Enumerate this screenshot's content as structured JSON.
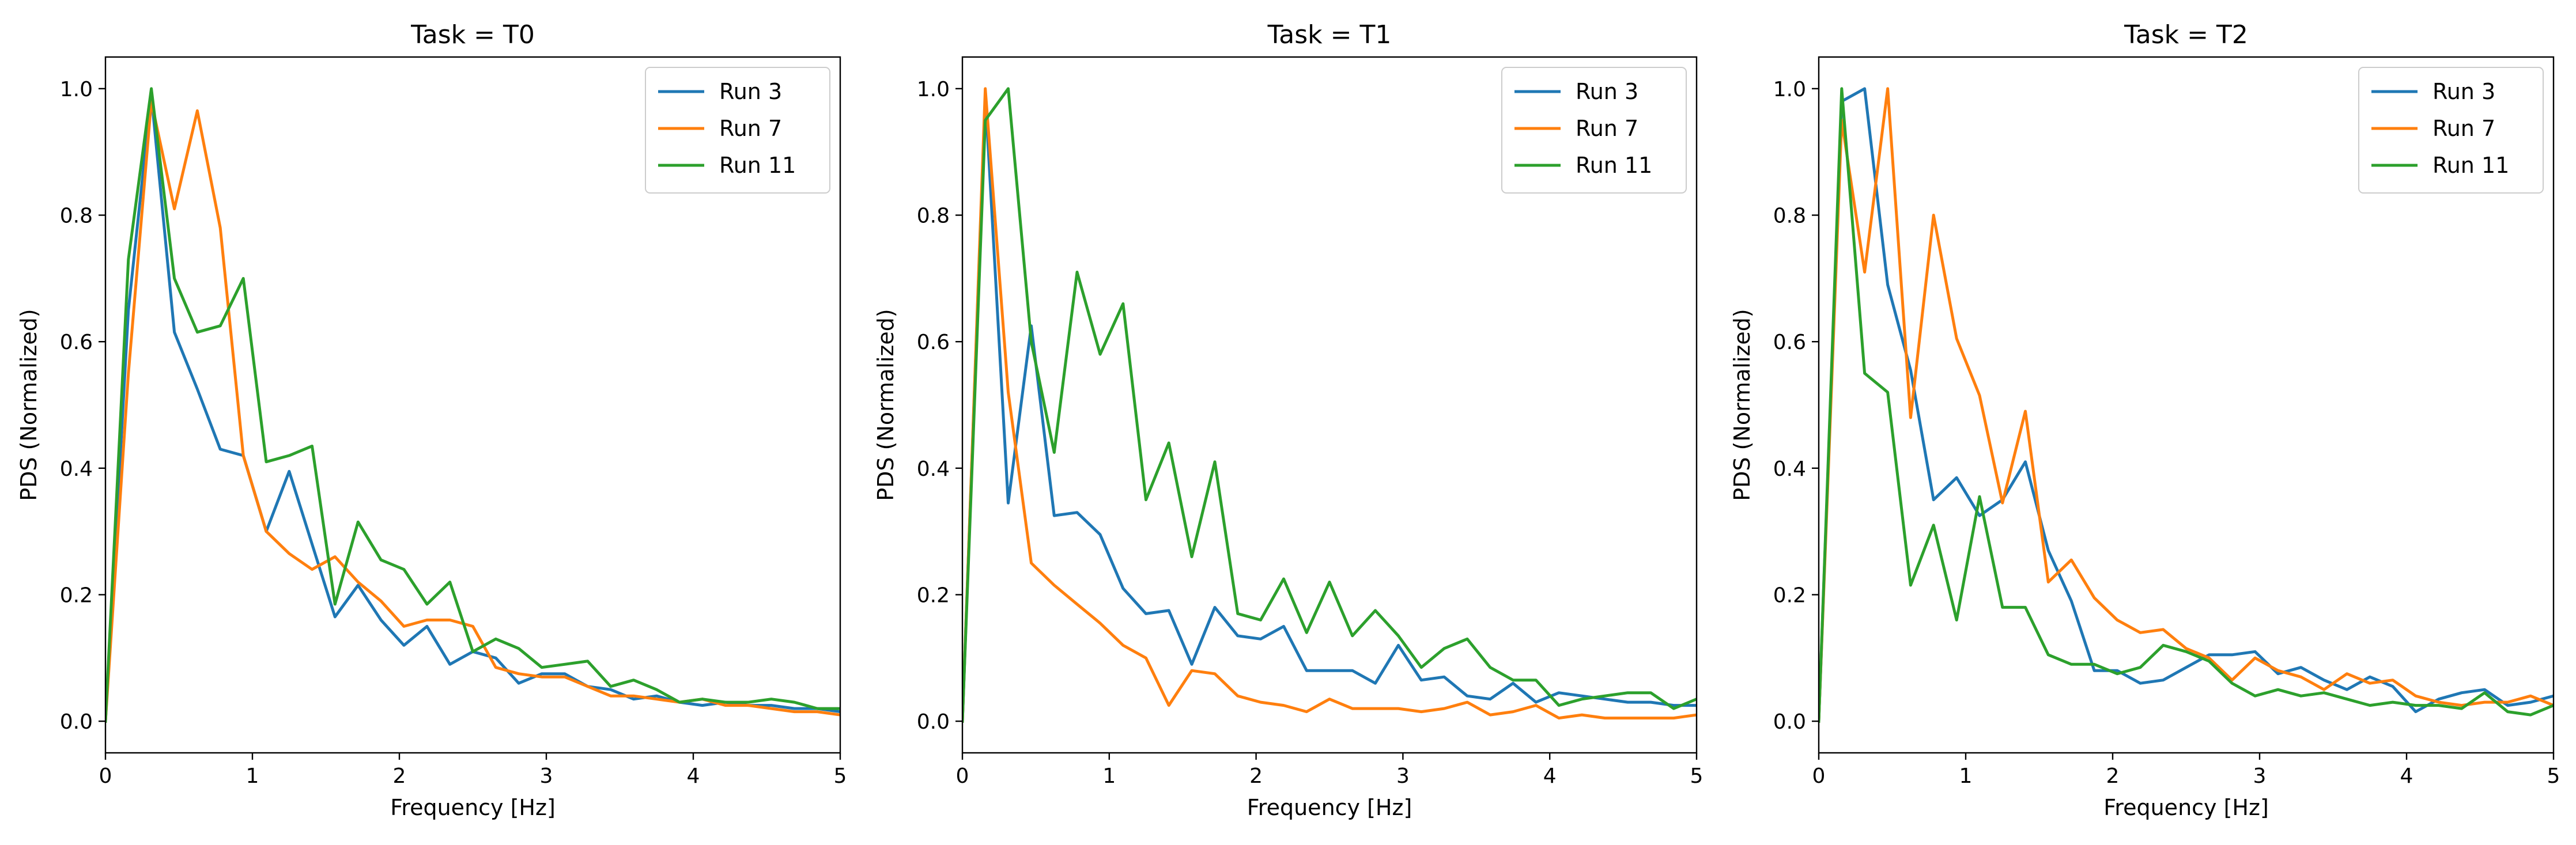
{
  "chart_data": [
    {
      "type": "line",
      "title": "Task = T0",
      "xlabel": "Frequency [Hz]",
      "ylabel": "PDS (Normalized)",
      "xlim": [
        0,
        5
      ],
      "ylim": [
        -0.05,
        1.05
      ],
      "xticks": [
        0,
        1,
        2,
        3,
        4,
        5
      ],
      "yticks": [
        0.0,
        0.2,
        0.4,
        0.6,
        0.8,
        1.0
      ],
      "xtick_labels": [
        "0",
        "1",
        "2",
        "3",
        "4",
        "5"
      ],
      "ytick_labels": [
        "0.0",
        "0.2",
        "0.4",
        "0.6",
        "0.8",
        "1.0"
      ],
      "legend_position": "top-right",
      "x": [
        0,
        0.156,
        0.312,
        0.469,
        0.625,
        0.781,
        0.938,
        1.094,
        1.25,
        1.406,
        1.562,
        1.719,
        1.875,
        2.031,
        2.188,
        2.344,
        2.5,
        2.656,
        2.812,
        2.969,
        3.125,
        3.281,
        3.438,
        3.594,
        3.75,
        3.906,
        4.062,
        4.219,
        4.375,
        4.531,
        4.688,
        4.844,
        5.0
      ],
      "series": [
        {
          "name": "Run 3",
          "color": "#1f77b4",
          "values": [
            0.0,
            0.65,
            0.99,
            0.615,
            0.525,
            0.43,
            0.42,
            0.3,
            0.395,
            0.28,
            0.165,
            0.215,
            0.16,
            0.12,
            0.15,
            0.09,
            0.11,
            0.1,
            0.06,
            0.075,
            0.075,
            0.055,
            0.05,
            0.035,
            0.04,
            0.03,
            0.025,
            0.03,
            0.025,
            0.025,
            0.02,
            0.02,
            0.015
          ]
        },
        {
          "name": "Run 7",
          "color": "#ff7f0e",
          "values": [
            0.0,
            0.55,
            0.98,
            0.81,
            0.965,
            0.78,
            0.42,
            0.3,
            0.265,
            0.24,
            0.26,
            0.22,
            0.19,
            0.15,
            0.16,
            0.16,
            0.15,
            0.085,
            0.075,
            0.07,
            0.07,
            0.055,
            0.04,
            0.04,
            0.035,
            0.03,
            0.035,
            0.025,
            0.025,
            0.02,
            0.015,
            0.015,
            0.01
          ]
        },
        {
          "name": "Run 11",
          "color": "#2ca02c",
          "values": [
            0.0,
            0.73,
            1.0,
            0.7,
            0.615,
            0.625,
            0.7,
            0.41,
            0.42,
            0.435,
            0.185,
            0.315,
            0.255,
            0.24,
            0.185,
            0.22,
            0.11,
            0.13,
            0.115,
            0.085,
            0.09,
            0.095,
            0.055,
            0.065,
            0.05,
            0.03,
            0.035,
            0.03,
            0.03,
            0.035,
            0.03,
            0.02,
            0.02
          ]
        }
      ]
    },
    {
      "type": "line",
      "title": "Task = T1",
      "xlabel": "Frequency [Hz]",
      "ylabel": "PDS (Normalized)",
      "xlim": [
        0,
        5
      ],
      "ylim": [
        -0.05,
        1.05
      ],
      "xticks": [
        0,
        1,
        2,
        3,
        4,
        5
      ],
      "yticks": [
        0.0,
        0.2,
        0.4,
        0.6,
        0.8,
        1.0
      ],
      "xtick_labels": [
        "0",
        "1",
        "2",
        "3",
        "4",
        "5"
      ],
      "ytick_labels": [
        "0.0",
        "0.2",
        "0.4",
        "0.6",
        "0.8",
        "1.0"
      ],
      "legend_position": "top-right",
      "x": [
        0,
        0.156,
        0.312,
        0.469,
        0.625,
        0.781,
        0.938,
        1.094,
        1.25,
        1.406,
        1.562,
        1.719,
        1.875,
        2.031,
        2.188,
        2.344,
        2.5,
        2.656,
        2.812,
        2.969,
        3.125,
        3.281,
        3.438,
        3.594,
        3.75,
        3.906,
        4.062,
        4.219,
        4.375,
        4.531,
        4.688,
        4.844,
        5.0
      ],
      "series": [
        {
          "name": "Run 3",
          "color": "#1f77b4",
          "values": [
            0.0,
            0.99,
            0.345,
            0.625,
            0.325,
            0.33,
            0.295,
            0.21,
            0.17,
            0.175,
            0.09,
            0.18,
            0.135,
            0.13,
            0.15,
            0.08,
            0.08,
            0.08,
            0.06,
            0.12,
            0.065,
            0.07,
            0.04,
            0.035,
            0.06,
            0.03,
            0.045,
            0.04,
            0.035,
            0.03,
            0.03,
            0.025,
            0.025
          ]
        },
        {
          "name": "Run 7",
          "color": "#ff7f0e",
          "values": [
            0.0,
            1.0,
            0.52,
            0.25,
            0.215,
            0.185,
            0.155,
            0.12,
            0.1,
            0.025,
            0.08,
            0.075,
            0.04,
            0.03,
            0.025,
            0.015,
            0.035,
            0.02,
            0.02,
            0.02,
            0.015,
            0.02,
            0.03,
            0.01,
            0.015,
            0.025,
            0.005,
            0.01,
            0.005,
            0.005,
            0.005,
            0.005,
            0.01
          ]
        },
        {
          "name": "Run 11",
          "color": "#2ca02c",
          "values": [
            0.0,
            0.95,
            1.0,
            0.6,
            0.425,
            0.71,
            0.58,
            0.66,
            0.35,
            0.44,
            0.26,
            0.41,
            0.17,
            0.16,
            0.225,
            0.14,
            0.22,
            0.135,
            0.175,
            0.135,
            0.085,
            0.115,
            0.13,
            0.085,
            0.065,
            0.065,
            0.025,
            0.035,
            0.04,
            0.045,
            0.045,
            0.02,
            0.035
          ]
        }
      ]
    },
    {
      "type": "line",
      "title": "Task = T2",
      "xlabel": "Frequency [Hz]",
      "ylabel": "PDS (Normalized)",
      "xlim": [
        0,
        5
      ],
      "ylim": [
        -0.05,
        1.05
      ],
      "xticks": [
        0,
        1,
        2,
        3,
        4,
        5
      ],
      "yticks": [
        0.0,
        0.2,
        0.4,
        0.6,
        0.8,
        1.0
      ],
      "xtick_labels": [
        "0",
        "1",
        "2",
        "3",
        "4",
        "5"
      ],
      "ytick_labels": [
        "0.0",
        "0.2",
        "0.4",
        "0.6",
        "0.8",
        "1.0"
      ],
      "legend_position": "top-right",
      "x": [
        0,
        0.156,
        0.312,
        0.469,
        0.625,
        0.781,
        0.938,
        1.094,
        1.25,
        1.406,
        1.562,
        1.719,
        1.875,
        2.031,
        2.188,
        2.344,
        2.5,
        2.656,
        2.812,
        2.969,
        3.125,
        3.281,
        3.438,
        3.594,
        3.75,
        3.906,
        4.062,
        4.219,
        4.375,
        4.531,
        4.688,
        4.844,
        5.0
      ],
      "series": [
        {
          "name": "Run 3",
          "color": "#1f77b4",
          "values": [
            0.0,
            0.98,
            1.0,
            0.69,
            0.555,
            0.35,
            0.385,
            0.325,
            0.35,
            0.41,
            0.27,
            0.19,
            0.08,
            0.08,
            0.06,
            0.065,
            0.085,
            0.105,
            0.105,
            0.11,
            0.075,
            0.085,
            0.065,
            0.05,
            0.07,
            0.055,
            0.015,
            0.035,
            0.045,
            0.05,
            0.025,
            0.03,
            0.04
          ]
        },
        {
          "name": "Run 7",
          "color": "#ff7f0e",
          "values": [
            0.0,
            0.95,
            0.71,
            1.0,
            0.48,
            0.8,
            0.605,
            0.515,
            0.345,
            0.49,
            0.22,
            0.255,
            0.195,
            0.16,
            0.14,
            0.145,
            0.115,
            0.1,
            0.065,
            0.1,
            0.08,
            0.07,
            0.05,
            0.075,
            0.06,
            0.065,
            0.04,
            0.03,
            0.025,
            0.03,
            0.03,
            0.04,
            0.025
          ]
        },
        {
          "name": "Run 11",
          "color": "#2ca02c",
          "values": [
            0.0,
            1.0,
            0.55,
            0.52,
            0.215,
            0.31,
            0.16,
            0.355,
            0.18,
            0.18,
            0.105,
            0.09,
            0.09,
            0.075,
            0.085,
            0.12,
            0.11,
            0.095,
            0.06,
            0.04,
            0.05,
            0.04,
            0.045,
            0.035,
            0.025,
            0.03,
            0.025,
            0.025,
            0.02,
            0.045,
            0.015,
            0.01,
            0.025
          ]
        }
      ]
    }
  ]
}
